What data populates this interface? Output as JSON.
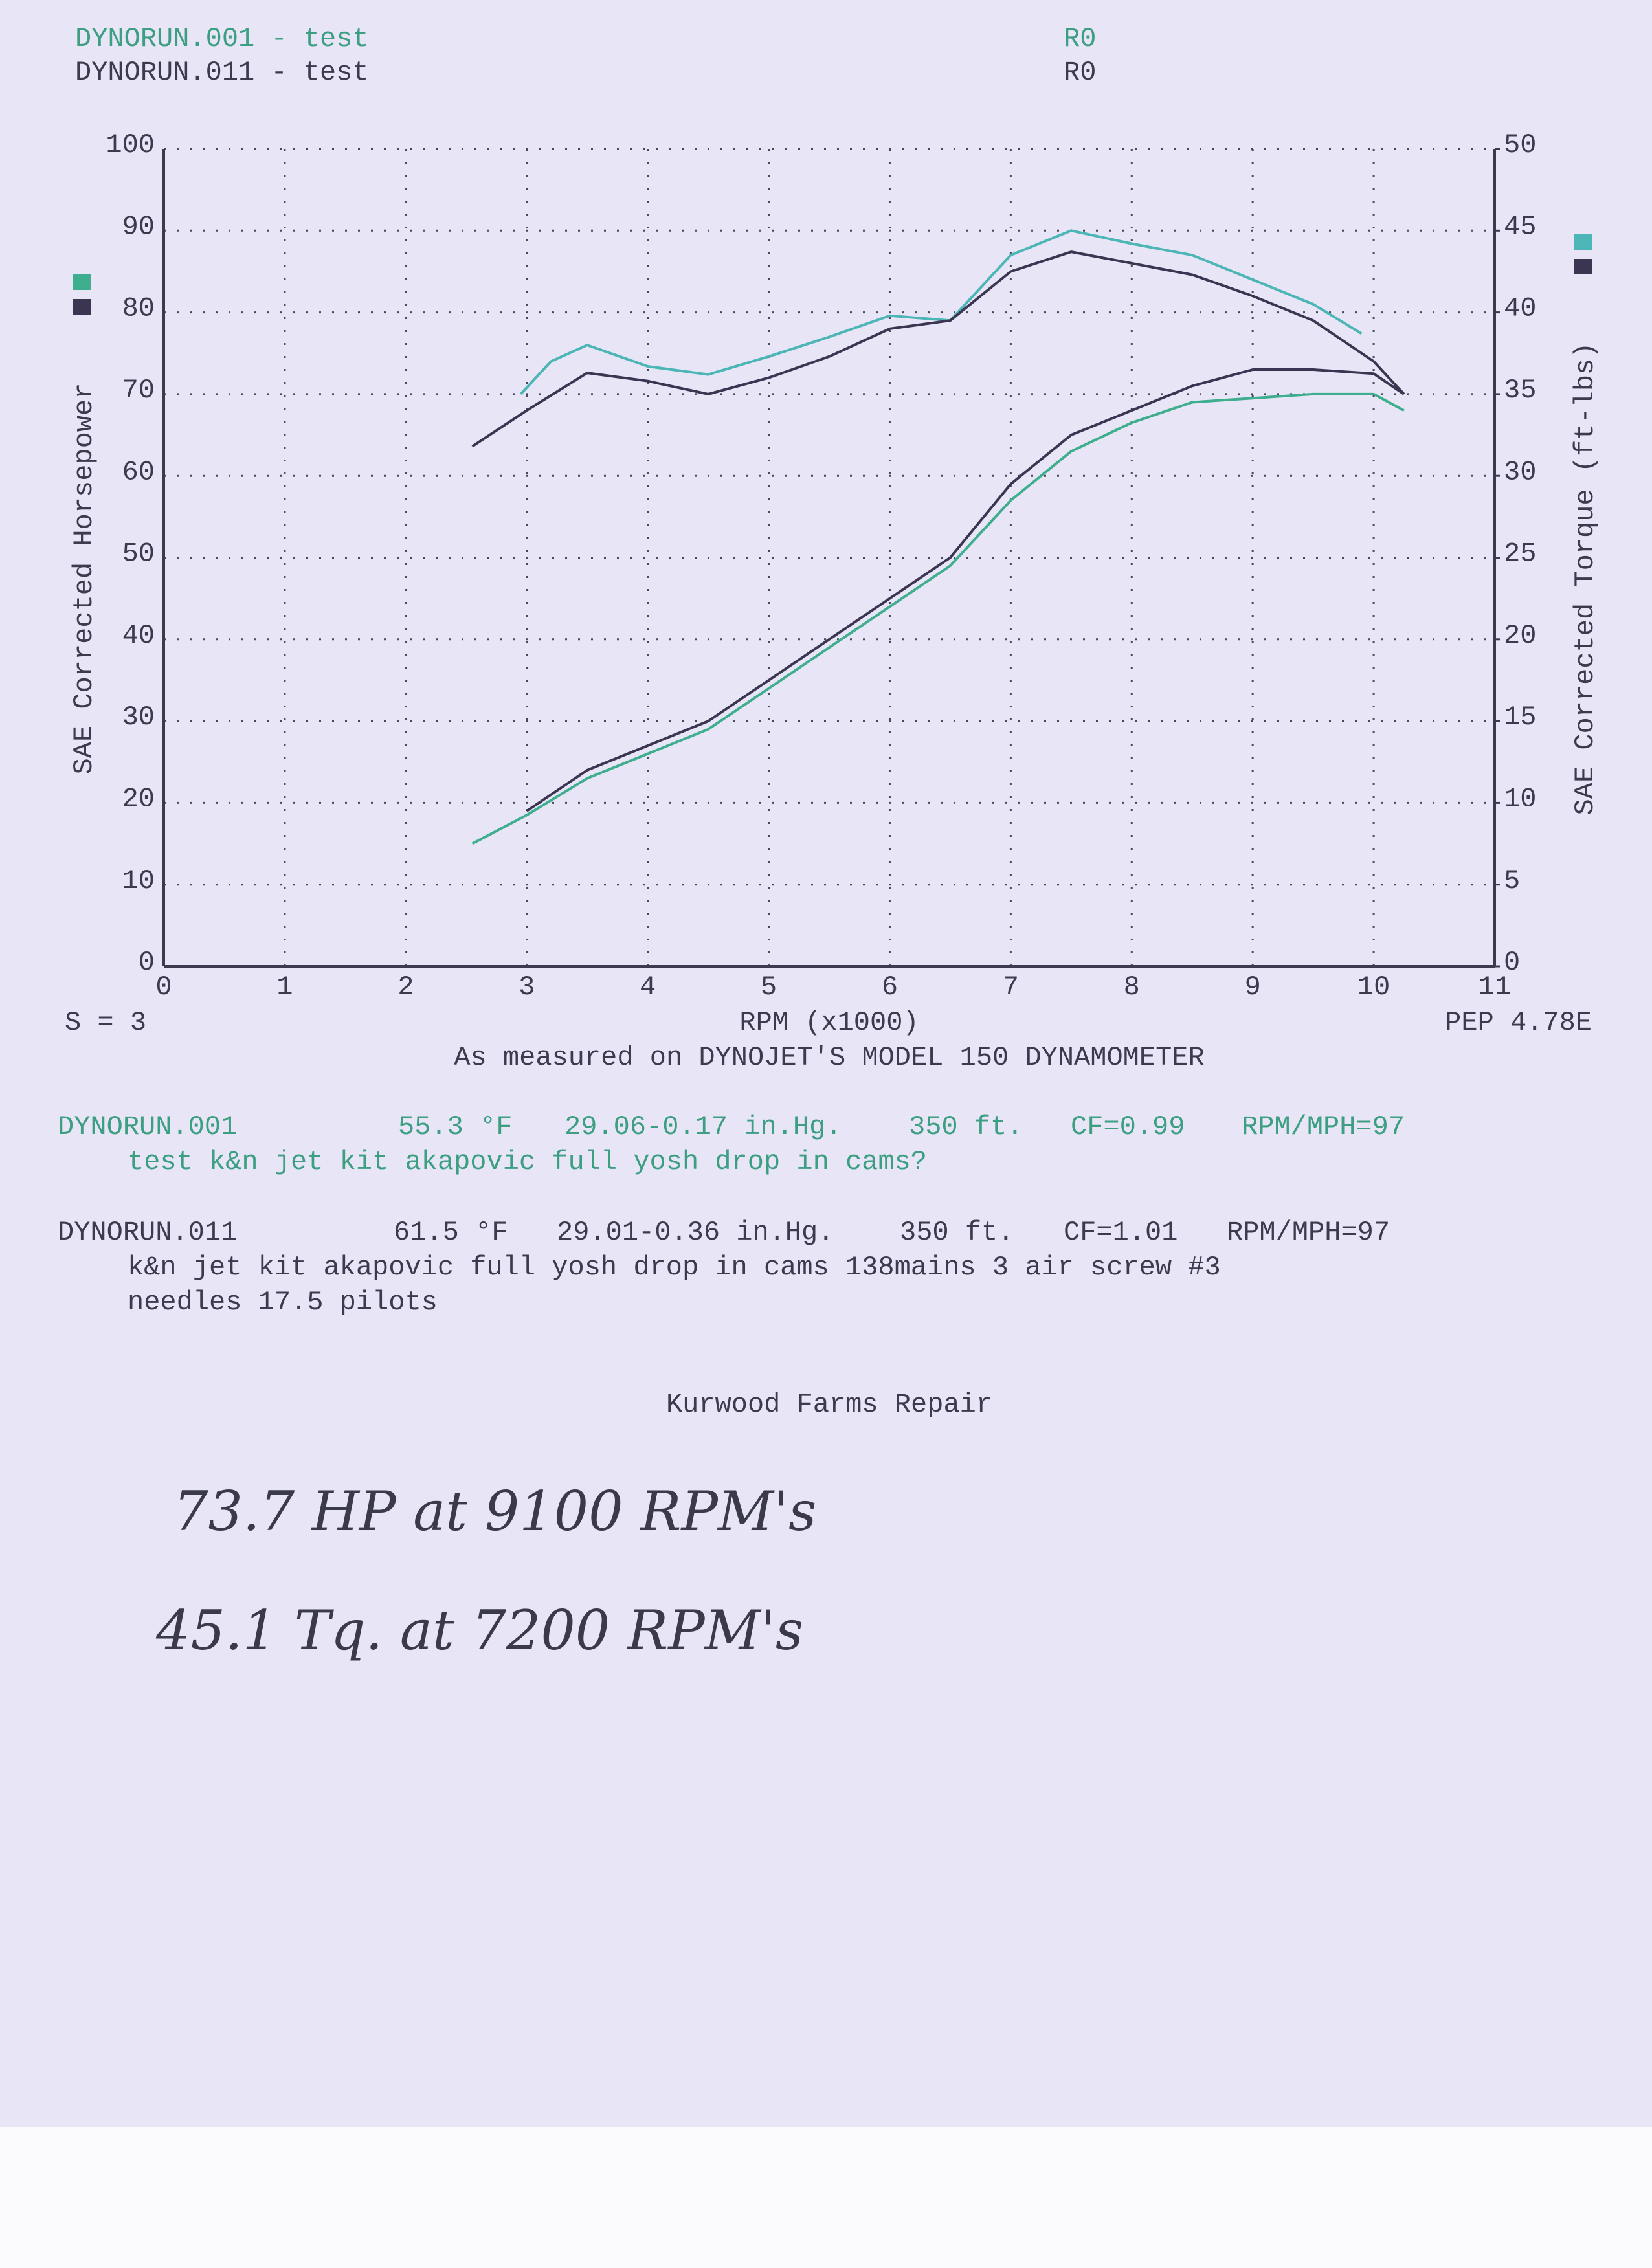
{
  "header": [
    {
      "title": "DYNORUN.001 - test",
      "code": "R0"
    },
    {
      "title": "DYNORUN.011 - test",
      "code": "R0"
    }
  ],
  "chart_data": {
    "type": "line",
    "x_label": "RPM (x1000)",
    "y_label": "SAE Corrected Horsepower",
    "y2_label": "SAE Corrected Torque (ft-lbs)",
    "smoothing": "S = 3",
    "pep": "PEP 4.78E",
    "caption": "As measured on DYNOJET'S MODEL 150 DYNAMOMETER",
    "xlim": [
      0,
      11
    ],
    "xticks": [
      0,
      1,
      2,
      3,
      4,
      5,
      6,
      7,
      8,
      9,
      10,
      11
    ],
    "ylim": [
      0,
      100
    ],
    "yticks": [
      0,
      10,
      20,
      30,
      40,
      50,
      60,
      70,
      80,
      90,
      100
    ],
    "y2lim": [
      0,
      50
    ],
    "y2ticks": [
      0,
      5,
      10,
      15,
      20,
      25,
      30,
      35,
      40,
      45,
      50
    ],
    "grid": true,
    "series": [
      {
        "color": "#3fae8e",
        "axis": "y",
        "x": [
          2.55,
          3,
          3.5,
          4,
          4.5,
          5,
          5.5,
          6,
          6.5,
          7,
          7.5,
          8,
          8.5,
          9,
          9.5,
          10,
          10.25
        ],
        "values": [
          15,
          18.5,
          23,
          26,
          29,
          34,
          39,
          44,
          49,
          57,
          63,
          66.5,
          69,
          69.5,
          70,
          70,
          68
        ]
      },
      {
        "color": "#3b3552",
        "axis": "y",
        "x": [
          3,
          3.5,
          4,
          4.5,
          5,
          5.5,
          6,
          6.5,
          7,
          7.5,
          8,
          8.5,
          9,
          9.5,
          10,
          10.25
        ],
        "values": [
          19,
          24,
          27,
          30,
          35,
          40,
          45,
          50,
          59,
          65,
          68,
          71,
          73,
          73,
          72.5,
          70
        ]
      },
      {
        "color": "#4cb5b5",
        "axis": "y2",
        "x": [
          2.95,
          3.2,
          3.5,
          4,
          4.5,
          5,
          5.5,
          6,
          6.5,
          7,
          7.5,
          8,
          8.5,
          9,
          9.5,
          9.9
        ],
        "values": [
          35,
          37,
          38,
          36.7,
          36.2,
          37.3,
          38.5,
          39.8,
          39.5,
          43.5,
          45,
          44.2,
          43.5,
          42,
          40.5,
          38.7
        ]
      },
      {
        "color": "#3b3552",
        "axis": "y2",
        "x": [
          2.55,
          3,
          3.5,
          4,
          4.5,
          5,
          5.5,
          6,
          6.5,
          7,
          7.5,
          8,
          8.5,
          9,
          9.5,
          10,
          10.25
        ],
        "values": [
          31.8,
          34,
          36.3,
          35.8,
          35,
          36,
          37.3,
          39,
          39.5,
          42.5,
          43.7,
          43,
          42.3,
          41,
          39.5,
          37,
          35
        ]
      }
    ]
  },
  "runs": [
    {
      "name": "DYNORUN.001",
      "temperature": "55.3 °F",
      "barometer": "29.06-0.17 in.Hg.",
      "altitude": "350 ft.",
      "cf": "CF=0.99",
      "rpm_mph": "RPM/MPH=97",
      "notes": [
        "test k&n jet kit akapovic full yosh drop in cams?"
      ]
    },
    {
      "name": "DYNORUN.011",
      "temperature": "61.5 °F",
      "barometer": "29.01-0.36 in.Hg.",
      "altitude": "350 ft.",
      "cf": "CF=1.01",
      "rpm_mph": "RPM/MPH=97",
      "notes": [
        "k&n jet kit akapovic full yosh drop in cams 138mains 3 air screw #3",
        "needles 17.5 pilots"
      ]
    }
  ],
  "footer": {
    "shop": "Kurwood Farms Repair",
    "handwritten": [
      "73.7 HP at 9100 RPM's",
      "45.1 Tq. at 7200 RPM's"
    ]
  }
}
